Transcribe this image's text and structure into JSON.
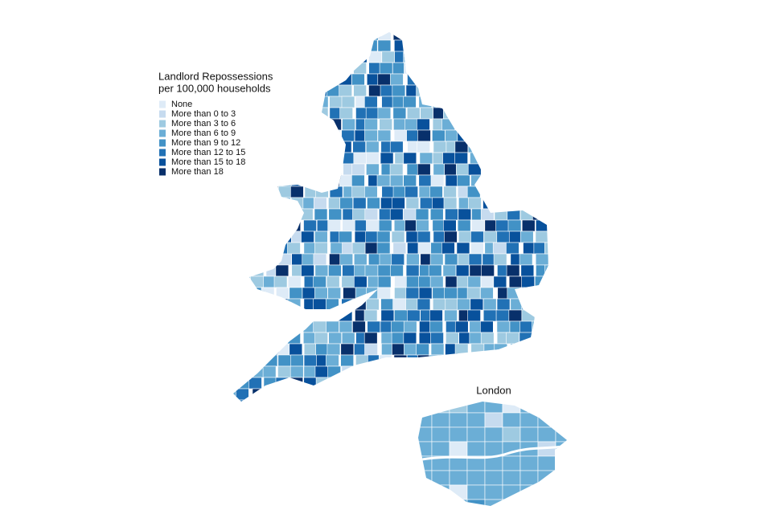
{
  "legend": {
    "title": [
      "Landlord Repossessions",
      "per 100,000 households"
    ],
    "items": [
      {
        "label": "None",
        "color": "#deebf7"
      },
      {
        "label": "More than 0 to 3",
        "color": "#c6dbef"
      },
      {
        "label": "More than 3 to 6",
        "color": "#9ecae1"
      },
      {
        "label": "More than 6 to 9",
        "color": "#6baed6"
      },
      {
        "label": "More than 9 to 12",
        "color": "#4292c6"
      },
      {
        "label": "More than 12 to 15",
        "color": "#2171b5"
      },
      {
        "label": "More than 15 to 18",
        "color": "#08519c"
      },
      {
        "label": "More than 18",
        "color": "#08306b"
      }
    ]
  },
  "inset": {
    "title": "London"
  }
}
